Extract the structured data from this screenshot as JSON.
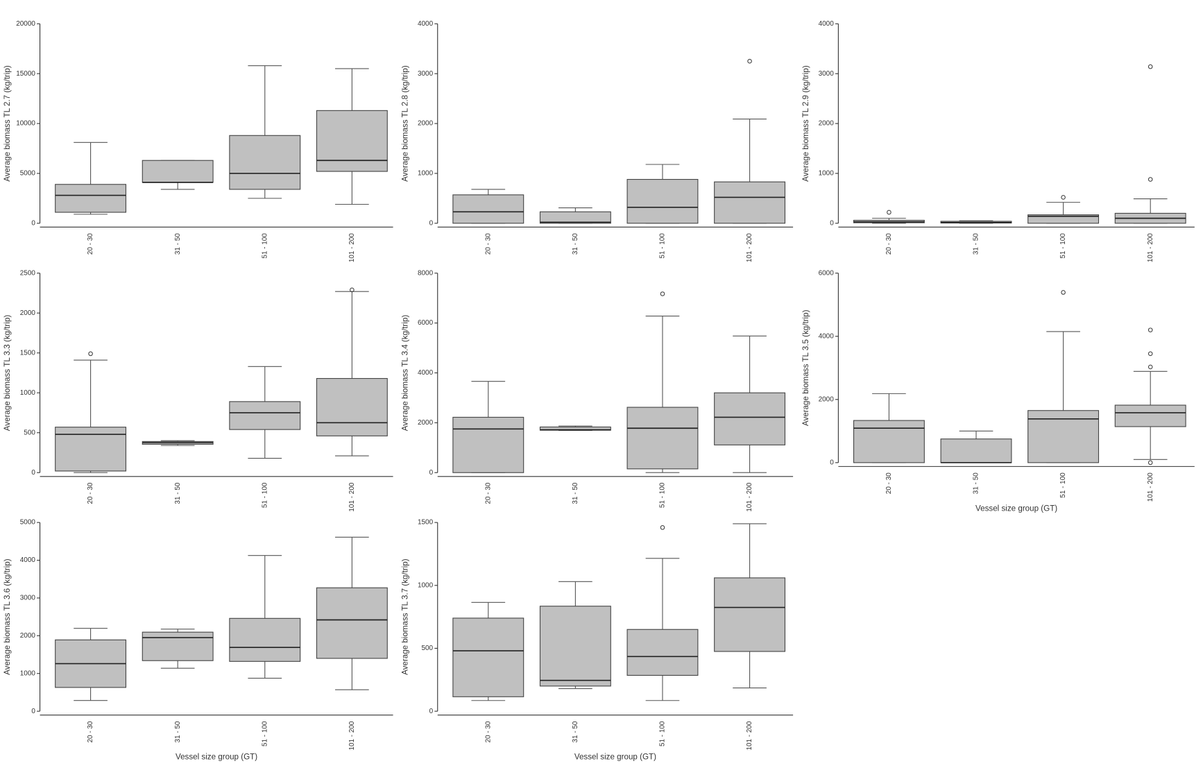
{
  "chart_data": [
    {
      "type": "box",
      "ylabel": "Average biomass TL 2.7 (kg/trip)",
      "categories": [
        "20 - 30",
        "31 - 50",
        "51 - 100",
        "101 - 200"
      ],
      "ylim": [
        0,
        20000
      ],
      "yticks": [
        0,
        5000,
        10000,
        15000,
        20000
      ],
      "color": "#c0c0c0",
      "boxes": [
        {
          "whisker_low": 900,
          "q1": 1100,
          "median": 2800,
          "q3": 3900,
          "whisker_high": 8100
        },
        {
          "whisker_low": 3400,
          "q1": 4100,
          "median": 4100,
          "q3": 6300,
          "whisker_high": 6300
        },
        {
          "whisker_low": 2500,
          "q1": 3400,
          "median": 5000,
          "q3": 8800,
          "whisker_high": 15800
        },
        {
          "whisker_low": 1900,
          "q1": 5200,
          "median": 6300,
          "q3": 11300,
          "whisker_high": 15500
        }
      ]
    },
    {
      "type": "box",
      "ylabel": "Average biomass TL 2.8 (kg/trip)",
      "categories": [
        "20 - 30",
        "31 - 50",
        "51 - 100",
        "101 - 200"
      ],
      "ylim": [
        0,
        4000
      ],
      "yticks": [
        0,
        1000,
        2000,
        3000,
        4000
      ],
      "color": "#c0c0c0",
      "boxes": [
        {
          "whisker_low": 0,
          "q1": 0,
          "median": 230,
          "q3": 570,
          "whisker_high": 680
        },
        {
          "whisker_low": 0,
          "q1": 0,
          "median": 20,
          "q3": 230,
          "whisker_high": 310
        },
        {
          "whisker_low": 0,
          "q1": 0,
          "median": 320,
          "q3": 880,
          "whisker_high": 1180
        },
        {
          "whisker_low": 0,
          "q1": 0,
          "median": 520,
          "q3": 830,
          "whisker_high": 2090,
          "outliers": [
            3250
          ]
        }
      ]
    },
    {
      "type": "box",
      "ylabel": "Average biomass TL 2.9 (kg/trip)",
      "categories": [
        "20 - 30",
        "31 - 50",
        "51 - 100",
        "101 - 200"
      ],
      "ylim": [
        0,
        4000
      ],
      "yticks": [
        0,
        1000,
        2000,
        3000,
        4000
      ],
      "color": "#c0c0c0",
      "boxes": [
        {
          "whisker_low": 0,
          "q1": 10,
          "median": 30,
          "q3": 60,
          "whisker_high": 100,
          "outliers": [
            220
          ]
        },
        {
          "whisker_low": 0,
          "q1": 5,
          "median": 15,
          "q3": 40,
          "whisker_high": 50
        },
        {
          "whisker_low": 0,
          "q1": 0,
          "median": 140,
          "q3": 170,
          "whisker_high": 420,
          "outliers": [
            520
          ]
        },
        {
          "whisker_low": 0,
          "q1": 0,
          "median": 100,
          "q3": 200,
          "whisker_high": 490,
          "outliers": [
            880,
            3140
          ]
        }
      ]
    },
    {
      "type": "box",
      "ylabel": "Average biomass TL 3.3 (kg/trip)",
      "categories": [
        "20 - 30",
        "31 - 50",
        "51 - 100",
        "101 - 200"
      ],
      "ylim": [
        0,
        2500
      ],
      "yticks": [
        0,
        500,
        1000,
        1500,
        2000,
        2500
      ],
      "color": "#c0c0c0",
      "boxes": [
        {
          "whisker_low": 0,
          "q1": 20,
          "median": 480,
          "q3": 570,
          "whisker_high": 1410,
          "outliers": [
            1490
          ]
        },
        {
          "whisker_low": 340,
          "q1": 355,
          "median": 375,
          "q3": 390,
          "whisker_high": 400
        },
        {
          "whisker_low": 180,
          "q1": 540,
          "median": 750,
          "q3": 890,
          "whisker_high": 1330
        },
        {
          "whisker_low": 210,
          "q1": 460,
          "median": 625,
          "q3": 1180,
          "whisker_high": 2270,
          "outliers": [
            2290
          ]
        }
      ]
    },
    {
      "type": "box",
      "ylabel": "Average biomass TL 3.4 (kg/trip)",
      "categories": [
        "20 - 30",
        "31 - 50",
        "51 - 100",
        "101 - 200"
      ],
      "ylim": [
        0,
        8000
      ],
      "yticks": [
        0,
        2000,
        4000,
        6000,
        8000
      ],
      "color": "#c0c0c0",
      "boxes": [
        {
          "whisker_low": 0,
          "q1": 0,
          "median": 1750,
          "q3": 2220,
          "whisker_high": 3660
        },
        {
          "whisker_low": 1690,
          "q1": 1700,
          "median": 1720,
          "q3": 1830,
          "whisker_high": 1870
        },
        {
          "whisker_low": 0,
          "q1": 150,
          "median": 1780,
          "q3": 2620,
          "whisker_high": 6280,
          "outliers": [
            7170
          ]
        },
        {
          "whisker_low": 0,
          "q1": 1110,
          "median": 2220,
          "q3": 3200,
          "whisker_high": 5480
        }
      ]
    },
    {
      "type": "box",
      "ylabel": "Average biomass TL 3.5 (kg/trip)",
      "xlabel": "Vessel size group (GT)",
      "categories": [
        "20 - 30",
        "31 - 50",
        "51 - 100",
        "101 - 200"
      ],
      "ylim": [
        0,
        6000
      ],
      "yticks": [
        0,
        2000,
        4000,
        6000
      ],
      "color": "#c0c0c0",
      "boxes": [
        {
          "whisker_low": 0,
          "q1": 0,
          "median": 1090,
          "q3": 1335,
          "whisker_high": 2185
        },
        {
          "whisker_low": 0,
          "q1": 0,
          "median": 0,
          "q3": 750,
          "whisker_high": 1000
        },
        {
          "whisker_low": 0,
          "q1": 0,
          "median": 1385,
          "q3": 1650,
          "whisker_high": 4150,
          "outliers": [
            5390
          ]
        },
        {
          "whisker_low": 100,
          "q1": 1140,
          "median": 1580,
          "q3": 1820,
          "whisker_high": 2890,
          "outliers": [
            0,
            3030,
            3450,
            4200
          ]
        }
      ]
    },
    {
      "type": "box",
      "ylabel": "Average biomass TL 3.6 (kg/trip)",
      "xlabel": "Vessel size group (GT)",
      "categories": [
        "20 - 30",
        "31 - 50",
        "51 - 100",
        "101 - 200"
      ],
      "ylim": [
        0,
        5000
      ],
      "yticks": [
        0,
        1000,
        2000,
        3000,
        4000,
        5000
      ],
      "color": "#c0c0c0",
      "boxes": [
        {
          "whisker_low": 285,
          "q1": 630,
          "median": 1260,
          "q3": 1890,
          "whisker_high": 2195
        },
        {
          "whisker_low": 1140,
          "q1": 1340,
          "median": 1950,
          "q3": 2095,
          "whisker_high": 2175
        },
        {
          "whisker_low": 875,
          "q1": 1320,
          "median": 1690,
          "q3": 2460,
          "whisker_high": 4125
        },
        {
          "whisker_low": 570,
          "q1": 1400,
          "median": 2420,
          "q3": 3270,
          "whisker_high": 4610
        }
      ]
    },
    {
      "type": "box",
      "ylabel": "Average biomass TL 3.7 (kg/trip)",
      "xlabel": "Vessel size group (GT)",
      "categories": [
        "20 - 30",
        "31 - 50",
        "51 - 100",
        "101 - 200"
      ],
      "ylim": [
        0,
        1500
      ],
      "yticks": [
        0,
        500,
        1000,
        1500
      ],
      "color": "#c0c0c0",
      "boxes": [
        {
          "whisker_low": 85,
          "q1": 115,
          "median": 480,
          "q3": 740,
          "whisker_high": 865
        },
        {
          "whisker_low": 180,
          "q1": 200,
          "median": 245,
          "q3": 835,
          "whisker_high": 1030
        },
        {
          "whisker_low": 85,
          "q1": 285,
          "median": 435,
          "q3": 650,
          "whisker_high": 1215,
          "outliers": [
            1460
          ]
        },
        {
          "whisker_low": 185,
          "q1": 475,
          "median": 825,
          "q3": 1060,
          "whisker_high": 1490
        }
      ]
    }
  ]
}
